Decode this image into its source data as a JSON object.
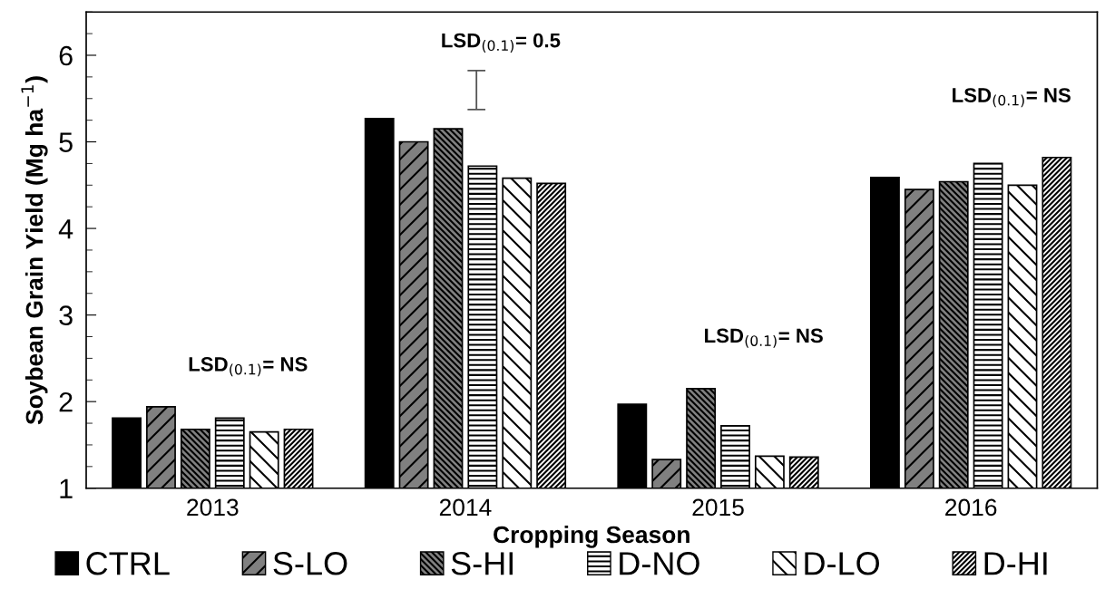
{
  "chart_data": {
    "type": "bar",
    "xlabel": "Cropping Season",
    "ylabel": "Soybean Grain Yield (Mg ha$^{−1}$)",
    "categories": [
      "2013",
      "2014",
      "2015",
      "2016"
    ],
    "series": [
      {
        "name": "CTRL",
        "color": "#000000",
        "values": [
          1.81,
          5.27,
          1.97,
          4.59
        ]
      },
      {
        "name": "S-LO",
        "color": "#808080",
        "values": [
          1.94,
          5.0,
          1.33,
          4.45
        ]
      },
      {
        "name": "S-HI",
        "color": "#808080",
        "values": [
          1.68,
          5.15,
          2.15,
          4.54
        ]
      },
      {
        "name": "D-NO",
        "color": "#ffffff",
        "values": [
          1.81,
          4.72,
          1.72,
          4.75
        ]
      },
      {
        "name": "D-LO",
        "color": "#ffffff",
        "values": [
          1.65,
          4.58,
          1.37,
          4.5
        ]
      },
      {
        "name": "D-HI",
        "color": "#ffffff",
        "values": [
          1.68,
          4.52,
          1.36,
          4.82
        ]
      }
    ],
    "ylim": [
      1,
      6.5
    ],
    "yticks": [
      1,
      2,
      3,
      4,
      5,
      6
    ],
    "grid": false,
    "legend": "bottom",
    "annotations": [
      "LSD$_{(0.1)}$= NS",
      "LSD$_{(0.1)}$= 0.5",
      "LSD$_{(0.1)}$= NS",
      "LSD$_{(0.1)}$= NS"
    ]
  }
}
